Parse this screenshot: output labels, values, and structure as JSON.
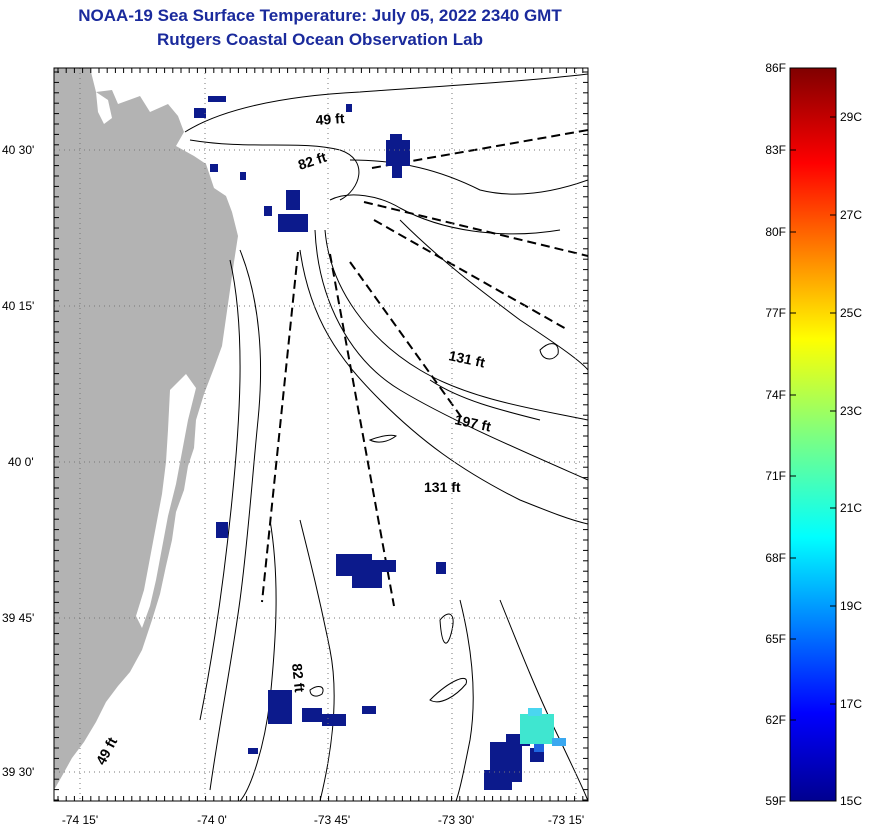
{
  "header": {
    "title": "NOAA-19 Sea Surface Temperature:  July 05, 2022 2340 GMT",
    "subtitle": "Rutgers Coastal Ocean Observation Lab"
  },
  "map": {
    "lat_labels": [
      "40 30'",
      "40 15'",
      "40 0'",
      "39 45'",
      "39 30'"
    ],
    "lon_labels": [
      "-74 15'",
      "-74 0'",
      "-73 45'",
      "-73 30'",
      "-73 15'"
    ],
    "depth_labels": [
      "49 ft",
      "82 ft",
      "131 ft",
      "197 ft",
      "131 ft",
      "82 ft",
      "49 ft"
    ],
    "colors": {
      "land": "#b3b3b3",
      "cold_water": "#0c1a8c",
      "warm_patch": "#3fe6d0"
    }
  },
  "colorbar": {
    "f_labels": [
      "86F",
      "83F",
      "80F",
      "77F",
      "74F",
      "71F",
      "68F",
      "65F",
      "62F",
      "59F"
    ],
    "c_labels": [
      "29C",
      "27C",
      "25C",
      "23C",
      "21C",
      "19C",
      "17C",
      "15C"
    ]
  }
}
